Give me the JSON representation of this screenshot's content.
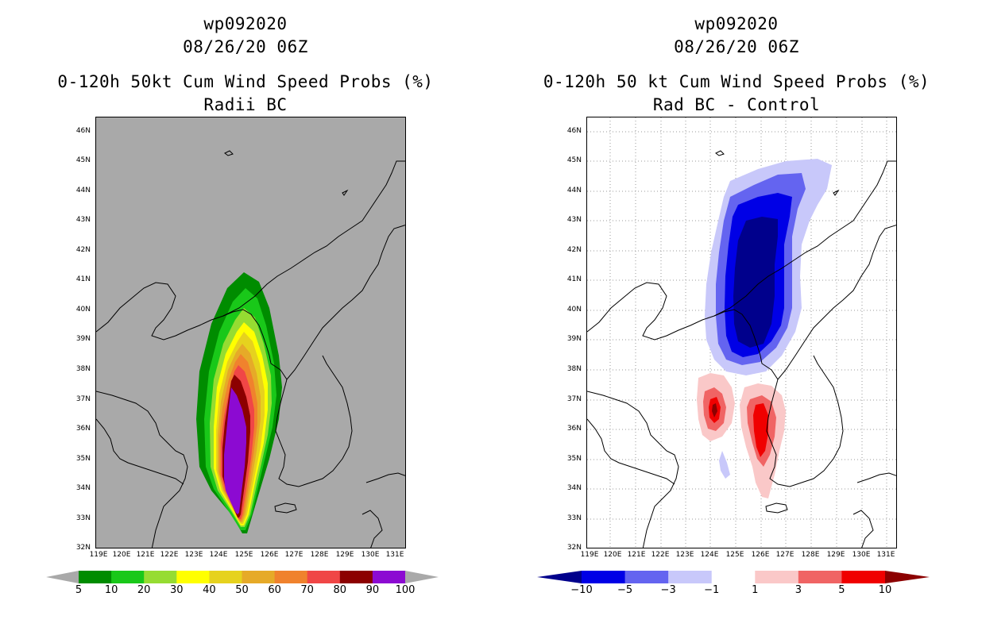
{
  "panels": [
    {
      "title_line1": "wp092020",
      "title_line2": "08/26/20 06Z",
      "title_line3": "0-120h 50kt Cum Wind Speed Probs (%)",
      "title_line4": "Radii BC",
      "background": "#a9a9a9"
    },
    {
      "title_line1": "wp092020",
      "title_line2": "08/26/20 06Z",
      "title_line3": "0-120h 50 kt Cum Wind Speed Probs (%)",
      "title_line4": "Rad BC - Control",
      "background": "#ffffff"
    }
  ],
  "axes": {
    "lat_labels": [
      "46N",
      "45N",
      "44N",
      "43N",
      "42N",
      "41N",
      "40N",
      "39N",
      "38N",
      "37N",
      "36N",
      "35N",
      "34N",
      "33N",
      "32N"
    ],
    "lon_labels": [
      "119E",
      "120E",
      "121E",
      "122E",
      "123E",
      "124E",
      "125E",
      "126E",
      "127E",
      "128E",
      "129E",
      "130E",
      "131E"
    ]
  },
  "chart_data": [
    {
      "type": "filled-contour",
      "title": "0-120h 50kt Cum Wind Speed Probs (%) Radii BC",
      "xlim": [
        119,
        131
      ],
      "ylim": [
        32,
        46.5
      ],
      "colorbar_levels": [
        "5",
        "10",
        "20",
        "30",
        "40",
        "50",
        "60",
        "70",
        "80",
        "90",
        "100"
      ],
      "colorbar_colors": [
        "#008c00",
        "#19c819",
        "#96dc32",
        "#ffff00",
        "#e6d21e",
        "#e6aa28",
        "#f0822d",
        "#f04646",
        "#8c0000",
        "#8c0ad2"
      ]
    },
    {
      "type": "filled-contour",
      "title": "0-120h 50 kt Cum Wind Speed Probs (%) Rad BC - Control",
      "xlim": [
        119,
        131
      ],
      "ylim": [
        32,
        46.5
      ],
      "colorbar_levels": [
        "−10",
        "−5",
        "−3",
        "−1",
        "1",
        "3",
        "5",
        "10"
      ],
      "colorbar_colors": [
        "#00008c",
        "#0000e6",
        "#6464f0",
        "#c8c8fa",
        "#ffffff",
        "#fac8c8",
        "#f06464",
        "#f00000",
        "#8c0000"
      ]
    }
  ]
}
